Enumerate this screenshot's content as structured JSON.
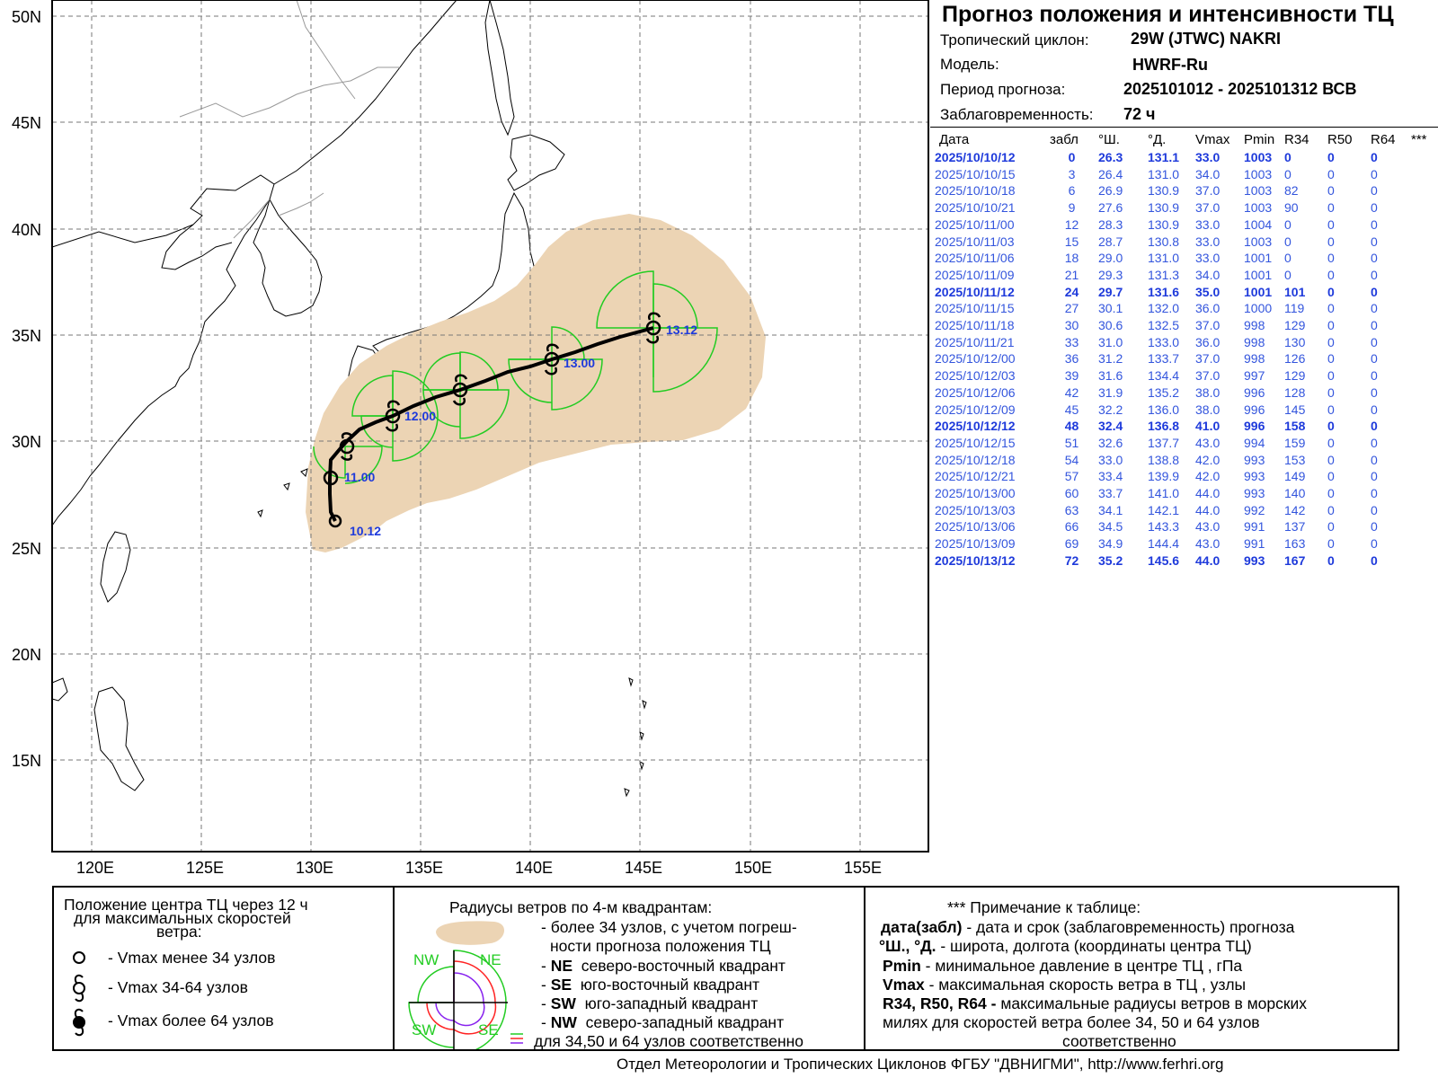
{
  "header": {
    "title": "Прогноз положения и интенсивности ТЦ",
    "cyclone_label": "Тропический циклон:",
    "cyclone_value": "29W (JTWC)  NAKRI",
    "model_label": "Модель:",
    "model_value": "HWRF-Ru",
    "period_label": "Период прогноза:",
    "period_value": "2025101012 - 2025101312 ВСВ",
    "lead_label": "Заблаговременность:",
    "lead_value": "72 ч"
  },
  "table": {
    "headers": [
      "Дата",
      "забл",
      "°Ш.",
      "°Д.",
      "Vmax",
      "Pmin",
      "R34",
      "R50",
      "R64",
      "***"
    ],
    "rows": [
      {
        "date": "2025/10/10/12",
        "lead": "0",
        "lat": "26.3",
        "lon": "131.1",
        "vmax": "33.0",
        "pmin": "1003",
        "r34": "0",
        "r50": "0",
        "r64": "0",
        "bold": true
      },
      {
        "date": "2025/10/10/15",
        "lead": "3",
        "lat": "26.4",
        "lon": "131.0",
        "vmax": "34.0",
        "pmin": "1003",
        "r34": "0",
        "r50": "0",
        "r64": "0",
        "bold": false
      },
      {
        "date": "2025/10/10/18",
        "lead": "6",
        "lat": "26.9",
        "lon": "130.9",
        "vmax": "37.0",
        "pmin": "1003",
        "r34": "82",
        "r50": "0",
        "r64": "0",
        "bold": false
      },
      {
        "date": "2025/10/10/21",
        "lead": "9",
        "lat": "27.6",
        "lon": "130.9",
        "vmax": "37.0",
        "pmin": "1003",
        "r34": "90",
        "r50": "0",
        "r64": "0",
        "bold": false
      },
      {
        "date": "2025/10/11/00",
        "lead": "12",
        "lat": "28.3",
        "lon": "130.9",
        "vmax": "33.0",
        "pmin": "1004",
        "r34": "0",
        "r50": "0",
        "r64": "0",
        "bold": false
      },
      {
        "date": "2025/10/11/03",
        "lead": "15",
        "lat": "28.7",
        "lon": "130.8",
        "vmax": "33.0",
        "pmin": "1003",
        "r34": "0",
        "r50": "0",
        "r64": "0",
        "bold": false
      },
      {
        "date": "2025/10/11/06",
        "lead": "18",
        "lat": "29.0",
        "lon": "131.0",
        "vmax": "33.0",
        "pmin": "1001",
        "r34": "0",
        "r50": "0",
        "r64": "0",
        "bold": false
      },
      {
        "date": "2025/10/11/09",
        "lead": "21",
        "lat": "29.3",
        "lon": "131.3",
        "vmax": "34.0",
        "pmin": "1001",
        "r34": "0",
        "r50": "0",
        "r64": "0",
        "bold": false
      },
      {
        "date": "2025/10/11/12",
        "lead": "24",
        "lat": "29.7",
        "lon": "131.6",
        "vmax": "35.0",
        "pmin": "1001",
        "r34": "101",
        "r50": "0",
        "r64": "0",
        "bold": true
      },
      {
        "date": "2025/10/11/15",
        "lead": "27",
        "lat": "30.1",
        "lon": "132.0",
        "vmax": "36.0",
        "pmin": "1000",
        "r34": "119",
        "r50": "0",
        "r64": "0",
        "bold": false
      },
      {
        "date": "2025/10/11/18",
        "lead": "30",
        "lat": "30.6",
        "lon": "132.5",
        "vmax": "37.0",
        "pmin": "998",
        "r34": "129",
        "r50": "0",
        "r64": "0",
        "bold": false
      },
      {
        "date": "2025/10/11/21",
        "lead": "33",
        "lat": "31.0",
        "lon": "133.0",
        "vmax": "36.0",
        "pmin": "998",
        "r34": "130",
        "r50": "0",
        "r64": "0",
        "bold": false
      },
      {
        "date": "2025/10/12/00",
        "lead": "36",
        "lat": "31.2",
        "lon": "133.7",
        "vmax": "37.0",
        "pmin": "998",
        "r34": "126",
        "r50": "0",
        "r64": "0",
        "bold": false
      },
      {
        "date": "2025/10/12/03",
        "lead": "39",
        "lat": "31.6",
        "lon": "134.4",
        "vmax": "37.0",
        "pmin": "997",
        "r34": "129",
        "r50": "0",
        "r64": "0",
        "bold": false
      },
      {
        "date": "2025/10/12/06",
        "lead": "42",
        "lat": "31.9",
        "lon": "135.2",
        "vmax": "38.0",
        "pmin": "996",
        "r34": "128",
        "r50": "0",
        "r64": "0",
        "bold": false
      },
      {
        "date": "2025/10/12/09",
        "lead": "45",
        "lat": "32.2",
        "lon": "136.0",
        "vmax": "38.0",
        "pmin": "996",
        "r34": "145",
        "r50": "0",
        "r64": "0",
        "bold": false
      },
      {
        "date": "2025/10/12/12",
        "lead": "48",
        "lat": "32.4",
        "lon": "136.8",
        "vmax": "41.0",
        "pmin": "996",
        "r34": "158",
        "r50": "0",
        "r64": "0",
        "bold": true
      },
      {
        "date": "2025/10/12/15",
        "lead": "51",
        "lat": "32.6",
        "lon": "137.7",
        "vmax": "43.0",
        "pmin": "994",
        "r34": "159",
        "r50": "0",
        "r64": "0",
        "bold": false
      },
      {
        "date": "2025/10/12/18",
        "lead": "54",
        "lat": "33.0",
        "lon": "138.8",
        "vmax": "42.0",
        "pmin": "993",
        "r34": "153",
        "r50": "0",
        "r64": "0",
        "bold": false
      },
      {
        "date": "2025/10/12/21",
        "lead": "57",
        "lat": "33.4",
        "lon": "139.9",
        "vmax": "42.0",
        "pmin": "993",
        "r34": "149",
        "r50": "0",
        "r64": "0",
        "bold": false
      },
      {
        "date": "2025/10/13/00",
        "lead": "60",
        "lat": "33.7",
        "lon": "141.0",
        "vmax": "44.0",
        "pmin": "993",
        "r34": "140",
        "r50": "0",
        "r64": "0",
        "bold": false
      },
      {
        "date": "2025/10/13/03",
        "lead": "63",
        "lat": "34.1",
        "lon": "142.1",
        "vmax": "44.0",
        "pmin": "992",
        "r34": "142",
        "r50": "0",
        "r64": "0",
        "bold": false
      },
      {
        "date": "2025/10/13/06",
        "lead": "66",
        "lat": "34.5",
        "lon": "143.3",
        "vmax": "43.0",
        "pmin": "991",
        "r34": "137",
        "r50": "0",
        "r64": "0",
        "bold": false
      },
      {
        "date": "2025/10/13/09",
        "lead": "69",
        "lat": "34.9",
        "lon": "144.4",
        "vmax": "43.0",
        "pmin": "991",
        "r34": "163",
        "r50": "0",
        "r64": "0",
        "bold": false
      },
      {
        "date": "2025/10/13/12",
        "lead": "72",
        "lat": "35.2",
        "lon": "145.6",
        "vmax": "44.0",
        "pmin": "993",
        "r34": "167",
        "r50": "0",
        "r64": "0",
        "bold": true
      }
    ]
  },
  "map": {
    "lat_labels": [
      "50N",
      "45N",
      "40N",
      "35N",
      "30N",
      "25N",
      "20N",
      "15N"
    ],
    "lon_labels": [
      "120E",
      "125E",
      "130E",
      "135E",
      "140E",
      "145E",
      "150E",
      "155E"
    ],
    "point_labels": [
      "10.12",
      "11.00",
      "12.00",
      "13.00",
      "13.12"
    ],
    "colors": {
      "cone": "#ecd4b4",
      "wind_radius": "#22cc22",
      "track": "#000000",
      "labels": "#1e3adb"
    }
  },
  "legend": {
    "section1": {
      "title_line1": "Положение центра ТЦ через 12 ч",
      "title_line2": "для максимальных скоростей",
      "title_line3": "ветра:",
      "item1": "- Vmax  менее 34 узлов",
      "item2": "- Vmax  34-64 узлов",
      "item3": "- Vmax  более 64 узлов"
    },
    "section2": {
      "title": "Радиусы ветров по 4-м квадрантам:",
      "cone_line1": "- более 34 узлов, с учетом погреш-",
      "cone_line2": "ности прогноза положения ТЦ",
      "ne_key": "NE",
      "ne_text": "северо-восточный квадрант",
      "se_key": "SE",
      "se_text": "юго-восточный квадрант",
      "sw_key": "SW",
      "sw_text": "юго-западный квадрант",
      "nw_key": "NW",
      "nw_text": "северо-западный квадрант",
      "last_line": "для 34,50 и 64 узлов соответственно",
      "quad_nw": "NW",
      "quad_ne": "NE",
      "quad_sw": "SW",
      "quad_se": "SE"
    },
    "section3": {
      "title": "*** Примечание к таблице:",
      "l1_key": "дата(забл)",
      "l1_text": " - дата и срок (заблаговременность) прогноза",
      "l2_key": "°Ш., °Д.",
      "l2_text": " - широта, долгота   (координаты центра ТЦ)",
      "l3_key": "Pmin",
      "l3_text": "  - минимальное давление в центре ТЦ , гПа",
      "l4_key": "Vmax",
      "l4_text": "   -  максимальная скорость ветра в ТЦ , узлы",
      "l5_key": "R34, R50, R64 -",
      "l5_text": "  максимальные радиусы ветров в морских",
      "l6": "милях для скоростей ветра более 34, 50 и 64 узлов",
      "l7": "соответственно"
    }
  },
  "footer": {
    "text": "Отдел Метеорологии и Тропических Циклонов ФГБУ \"ДВНИГМИ\",  http://www.ferhri.org"
  }
}
